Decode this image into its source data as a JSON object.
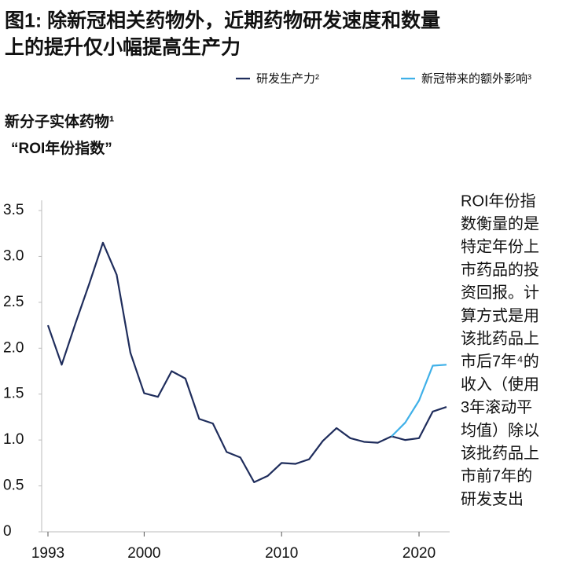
{
  "chart_data": {
    "type": "line",
    "title": [
      "图1: 除新冠相关药物外，近期药物研发速度和数量",
      "上的提升仅小幅提高生产力"
    ],
    "y_label": [
      "新分子实体药物¹",
      "“ROI年份指数”"
    ],
    "annotation": [
      "ROI年份指",
      "数衡量的是",
      "特定年份上",
      "市药品的投",
      "资回报。计",
      "算方式是用",
      "该批药品上",
      "市后7年⁴的",
      "收入（使用",
      "3年滚动平",
      "均值）除以",
      "该批药品上",
      "市前7年的",
      "研发支出"
    ],
    "x": [
      1993,
      1994,
      1995,
      1996,
      1997,
      1998,
      1999,
      2000,
      2001,
      2002,
      2003,
      2004,
      2005,
      2006,
      2007,
      2008,
      2009,
      2010,
      2011,
      2012,
      2013,
      2014,
      2015,
      2016,
      2017,
      2018,
      2019,
      2020,
      2021,
      2022
    ],
    "series": [
      {
        "name": "研发生产力²",
        "color": "#1f2d5c",
        "values": [
          2.25,
          1.82,
          2.27,
          2.7,
          3.15,
          2.8,
          1.95,
          1.51,
          1.47,
          1.75,
          1.67,
          1.23,
          1.18,
          0.87,
          0.81,
          0.54,
          0.61,
          0.75,
          0.74,
          0.79,
          0.99,
          1.13,
          1.02,
          0.98,
          0.97,
          1.04,
          1.0,
          1.02,
          1.31,
          1.36
        ]
      },
      {
        "name": "新冠带来的额外影响³",
        "color": "#3fb0e8",
        "values": [
          null,
          null,
          null,
          null,
          null,
          null,
          null,
          null,
          null,
          null,
          null,
          null,
          null,
          null,
          null,
          null,
          null,
          null,
          null,
          null,
          null,
          null,
          null,
          null,
          null,
          1.04,
          1.19,
          1.43,
          1.81,
          1.82
        ]
      }
    ],
    "xlim": [
      1993,
      2022
    ],
    "xticks": [
      1993,
      2000,
      2010,
      2020
    ],
    "ylim": [
      0,
      3.5
    ],
    "yticks": [
      0,
      0.5,
      {
        "value": 1,
        "label": "1.0"
      },
      1.5,
      {
        "value": 2,
        "label": "2.0"
      },
      2.5,
      {
        "value": 3,
        "label": "3.0"
      },
      3.5
    ],
    "grid": false
  }
}
